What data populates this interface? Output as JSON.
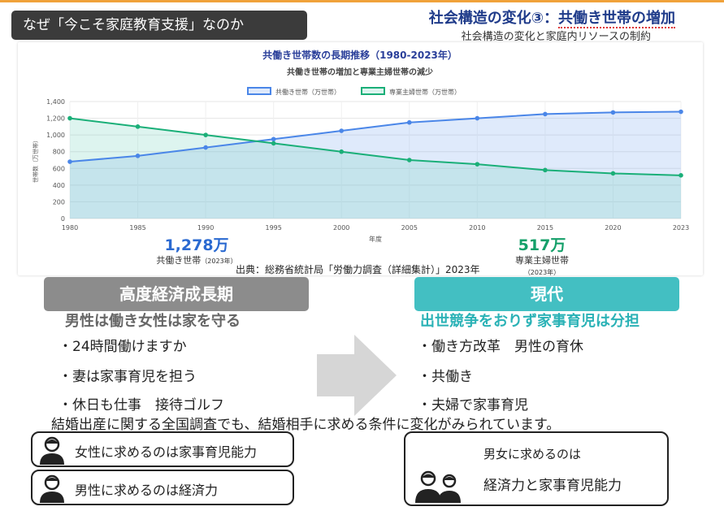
{
  "header": {
    "tag": "なぜ「今こそ家庭教育支援」なのか",
    "title_prefix": "社会構造の変化③：",
    "title_underlined": "共働き世帯の増加",
    "subtitle": "社会構造の変化と家庭内リソースの制約"
  },
  "chart_data": {
    "type": "line",
    "title": "共働き世帯数の長期推移（1980-2023年）",
    "subtitle": "共働き世帯の増加と専業主婦世帯の減少",
    "xlabel": "年度",
    "ylabel": "世帯数（万世帯）",
    "x": [
      "1980",
      "1985",
      "1990",
      "1995",
      "2000",
      "2005",
      "2010",
      "2015",
      "2020",
      "2023"
    ],
    "yticks": [
      0,
      200,
      400,
      600,
      800,
      "1,000",
      "1,200",
      "1,400"
    ],
    "ylim": [
      0,
      1400
    ],
    "grid": true,
    "legend_position": "top",
    "fill": true,
    "series": [
      {
        "name": "共働き世帯（万世帯）",
        "color": "#4a86e8",
        "fill": "rgba(140,180,240,0.28)",
        "values": [
          680,
          750,
          850,
          950,
          1050,
          1150,
          1200,
          1250,
          1270,
          1278
        ]
      },
      {
        "name": "専業主婦世帯（万世帯）",
        "color": "#1aaf78",
        "fill": "rgba(120,210,190,0.25)",
        "values": [
          1200,
          1100,
          1000,
          900,
          800,
          700,
          650,
          580,
          540,
          517
        ]
      }
    ]
  },
  "stats": {
    "dual": {
      "value": "1,278万",
      "label": "共働き世帯",
      "year": "（2023年）",
      "color": "#2b6ad1"
    },
    "housewife": {
      "value": "517万",
      "label": "専業主婦世帯",
      "year": "（2023年）",
      "color": "#15a06a"
    }
  },
  "source": "出典：総務省統計局「労働力調査（詳細集計）」2023年",
  "past": {
    "label": "高度経済成長期",
    "slogan": "男性は働き女性は家を守る",
    "items": [
      "・24時間働けますか",
      "・妻は家事育児を担う",
      "・休日も仕事　接待ゴルフ"
    ]
  },
  "present": {
    "label": "現代",
    "slogan": "出世競争をおりず家事育児は分担",
    "items": [
      "・働き方改革　男性の育休",
      "・共働き",
      "・夫婦で家事育児"
    ]
  },
  "survey_text": "結婚出産に関する全国調査でも、結婚相手に求める条件に変化がみられています。",
  "cards": {
    "female": "女性に求めるのは家事育児能力",
    "male": "男性に求めるのは経済力",
    "both_line1": "男女に求めるのは",
    "both_line2": "経済力と家事育児能力"
  }
}
